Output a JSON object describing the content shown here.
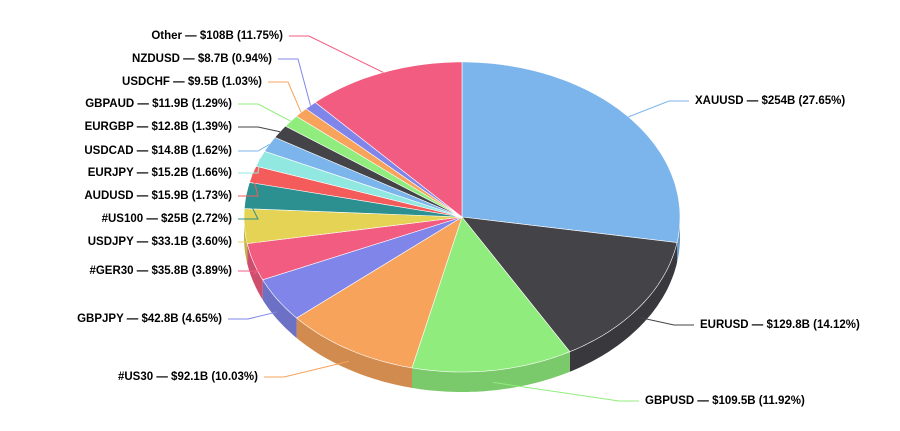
{
  "chart_data": {
    "type": "pie3d",
    "categories": [
      "XAUUSD",
      "EURUSD",
      "GBPUSD",
      "#US30",
      "GBPJPY",
      "#GER30",
      "USDJPY",
      "#US100",
      "AUDUSD",
      "EURJPY",
      "USDCAD",
      "EURGBP",
      "GBPAUD",
      "USDCHF",
      "NZDUSD",
      "Other"
    ],
    "values": [
      254,
      129.8,
      109.5,
      92.1,
      42.8,
      35.8,
      33.1,
      25,
      15.9,
      15.2,
      14.8,
      12.8,
      11.9,
      9.5,
      8.7,
      108
    ],
    "label_separator": " — ",
    "value_labels": [
      "$254B (27.65%)",
      "$129.8B (14.12%)",
      "$109.5B (11.92%)",
      "$92.1B (10.03%)",
      "$42.8B (4.65%)",
      "$35.8B (3.89%)",
      "$33.1B (3.60%)",
      "$25B (2.72%)",
      "$15.9B (1.73%)",
      "$15.2B (1.66%)",
      "$14.8B (1.62%)",
      "$12.8B (1.39%)",
      "$11.9B (1.29%)",
      "$9.5B (1.03%)",
      "$8.7B (0.94%)",
      "$108B (11.75%)"
    ],
    "colors": [
      "#7cb5ec",
      "#434348",
      "#90ed7d",
      "#f7a35c",
      "#8085e9",
      "#f15c80",
      "#e4d354",
      "#2b908f",
      "#f45b5b",
      "#91e8e1",
      "#7cb5ec",
      "#434348",
      "#90ed7d",
      "#f7a35c",
      "#8085e9",
      "#f15c80"
    ]
  }
}
